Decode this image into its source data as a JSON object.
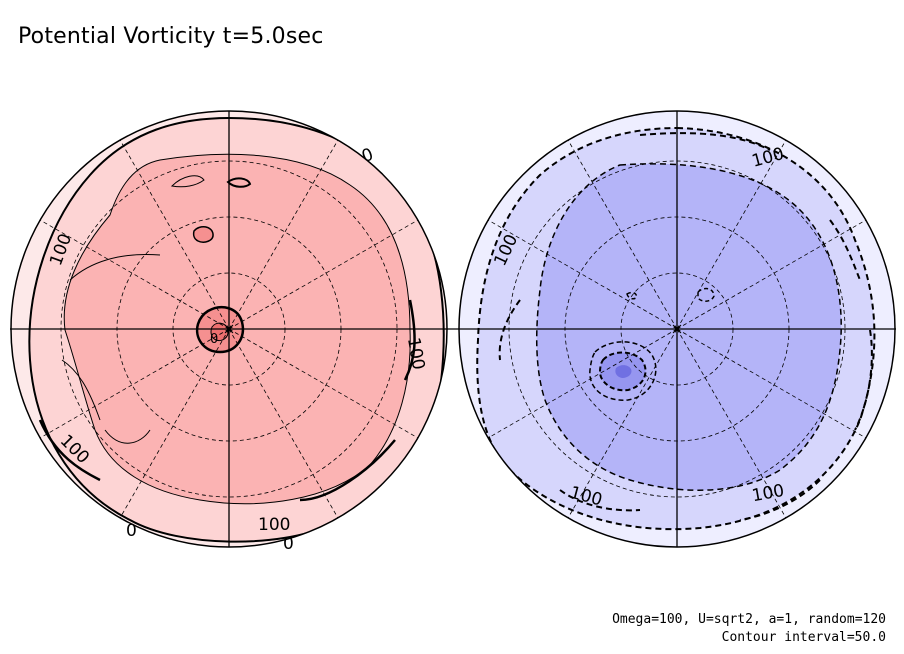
{
  "title": "Potential Vorticity t=5.0sec",
  "chart_data": {
    "type": "contour",
    "contour_interval": 50.0,
    "panels": [
      {
        "hemisphere": "north",
        "sign": "positive",
        "fill_levels": [
          "#fde9e9",
          "#fdd4d4",
          "#fbb3b3",
          "#f59090",
          "#ee6f6f"
        ],
        "contour_labels": [
          {
            "text": "0"
          },
          {
            "text": "100"
          },
          {
            "text": "100"
          },
          {
            "text": "100"
          },
          {
            "text": "100"
          },
          {
            "text": "0"
          },
          {
            "text": "0"
          },
          {
            "text": "0"
          }
        ]
      },
      {
        "hemisphere": "south",
        "sign": "negative",
        "fill_levels": [
          "#eeeeff",
          "#d6d6fc",
          "#b4b4f8",
          "#9696f0",
          "#7070e2"
        ],
        "contour_labels": [
          {
            "text": "100"
          },
          {
            "text": "100"
          },
          {
            "text": "100"
          },
          {
            "text": "100"
          }
        ]
      }
    ]
  },
  "footer": {
    "params": "Omega=100, U=sqrt2, a=1, random=120",
    "interval": "Contour interval=50.0"
  }
}
